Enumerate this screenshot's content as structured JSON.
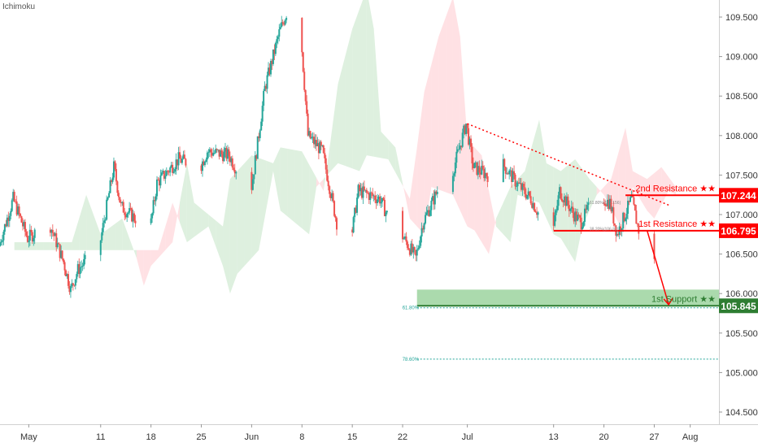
{
  "indicator_label": "Ichimoku",
  "colors": {
    "bull": "#26a69a",
    "bear": "#ef5350",
    "bull_cloud": "#c8e6c9",
    "bear_cloud": "#ffcdd2",
    "resistance": "#ff0000",
    "support_fill": "#66bb6a",
    "support_label_bg": "#2e7d32",
    "fib": "#26a69a",
    "axis_text": "#333333",
    "axis_line": "#e0e0e0"
  },
  "chart_data": {
    "type": "candlestick",
    "x_ticks": [
      "May",
      "11",
      "18",
      "25",
      "Jun",
      "8",
      "15",
      "22",
      "Jul",
      "13",
      "20",
      "27",
      "Aug"
    ],
    "y_ticks": [
      "109.500",
      "109.000",
      "108.500",
      "108.000",
      "107.500",
      "107.000",
      "106.500",
      "106.000",
      "105.500",
      "105.000",
      "104.500"
    ],
    "ylim": [
      104.45,
      109.95
    ],
    "levels": [
      {
        "name": "2nd Resistance ★★",
        "value": 107.244,
        "value_label": "107.244"
      },
      {
        "name": "1st Resistance ★★",
        "value": 106.795,
        "value_label": "106.795"
      },
      {
        "name": "1st Support ★★",
        "value": 105.845,
        "value_label": "105.845",
        "zone": [
          105.845,
          106.05
        ]
      }
    ],
    "fib_levels": [
      {
        "label": "61.80%",
        "value": 105.82
      },
      {
        "label": "78.60%",
        "value": 105.17
      }
    ],
    "small_fib_labels": [
      {
        "label": "61.80%(107.156)",
        "value": 107.156
      },
      {
        "label": "38.20%(106.82)",
        "value": 106.82
      }
    ],
    "trendline": {
      "from": {
        "date": "2020-07-01",
        "value": 108.15
      },
      "to": {
        "date": "2020-07-29",
        "value": 107.12
      }
    },
    "forecast_arrow": {
      "from": {
        "date": "2020-07-26",
        "value": 106.8
      },
      "to": {
        "date": "2020-07-29",
        "value": 105.86
      }
    },
    "price_path": [
      [
        "2020-04-27",
        106.6
      ],
      [
        "2020-04-29",
        107.2
      ],
      [
        "2020-05-01",
        106.7
      ],
      [
        "2020-05-04",
        106.9
      ],
      [
        "2020-05-06",
        106.4
      ],
      [
        "2020-05-07",
        106.05
      ],
      [
        "2020-05-08",
        106.3
      ],
      [
        "2020-05-11",
        106.6
      ],
      [
        "2020-05-13",
        107.6
      ],
      [
        "2020-05-14",
        107.1
      ],
      [
        "2020-05-18",
        106.8
      ],
      [
        "2020-05-19",
        107.4
      ],
      [
        "2020-05-22",
        107.7
      ],
      [
        "2020-05-25",
        107.6
      ],
      [
        "2020-05-26",
        107.8
      ],
      [
        "2020-05-29",
        107.75
      ],
      [
        "2020-06-01",
        107.25
      ],
      [
        "2020-06-02",
        107.9
      ],
      [
        "2020-06-03",
        108.6
      ],
      [
        "2020-06-05",
        109.3
      ],
      [
        "2020-06-07",
        109.8
      ],
      [
        "2020-06-08",
        109.3
      ],
      [
        "2020-06-09",
        108.0
      ],
      [
        "2020-06-11",
        107.8
      ],
      [
        "2020-06-13",
        106.9
      ],
      [
        "2020-06-15",
        106.7
      ],
      [
        "2020-06-16",
        107.3
      ],
      [
        "2020-06-19",
        107.2
      ],
      [
        "2020-06-21",
        106.8
      ],
      [
        "2020-06-22",
        106.75
      ],
      [
        "2020-06-23",
        106.6
      ],
      [
        "2020-06-24",
        106.45
      ],
      [
        "2020-06-25",
        106.9
      ],
      [
        "2020-06-27",
        107.3
      ],
      [
        "2020-06-29",
        107.5
      ],
      [
        "2020-07-01",
        108.15
      ],
      [
        "2020-07-02",
        107.6
      ],
      [
        "2020-07-04",
        107.5
      ],
      [
        "2020-07-06",
        107.65
      ],
      [
        "2020-07-08",
        107.4
      ],
      [
        "2020-07-10",
        107.2
      ],
      [
        "2020-07-12",
        106.85
      ],
      [
        "2020-07-13",
        106.75
      ],
      [
        "2020-07-14",
        107.3
      ],
      [
        "2020-07-16",
        107.0
      ],
      [
        "2020-07-17",
        106.9
      ],
      [
        "2020-07-19",
        107.25
      ],
      [
        "2020-07-21",
        107.15
      ],
      [
        "2020-07-22",
        106.75
      ],
      [
        "2020-07-24",
        107.2
      ],
      [
        "2020-07-25",
        106.8
      ],
      [
        "2020-07-26",
        106.4
      ]
    ]
  }
}
